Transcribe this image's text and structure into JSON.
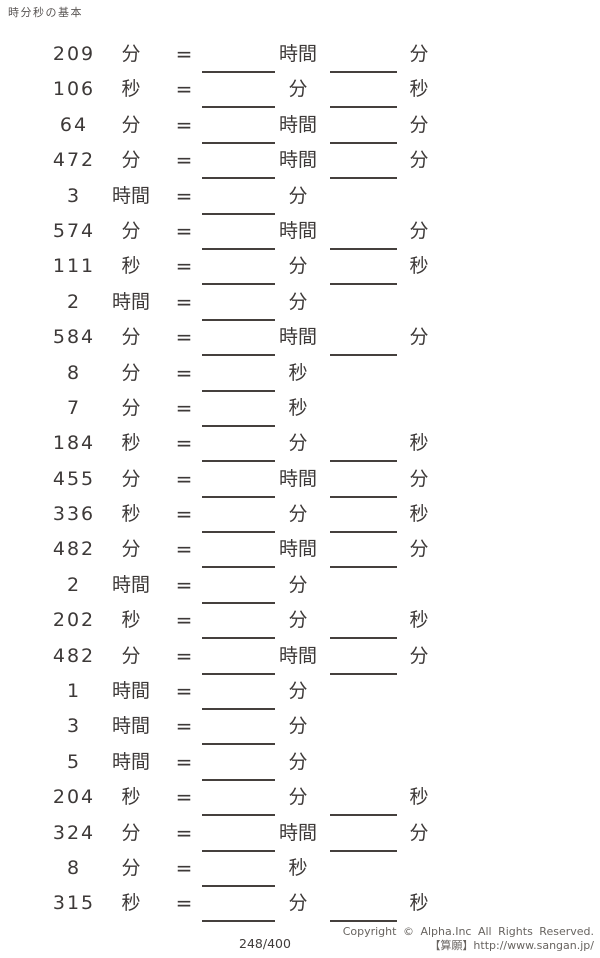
{
  "header": {
    "title": "時分秒の基本"
  },
  "problems": {
    "equals_symbol": "=",
    "rows": [
      {
        "value": "209",
        "from_unit": "分",
        "answer1_unit": "時間",
        "answer2_unit": "分"
      },
      {
        "value": "106",
        "from_unit": "秒",
        "answer1_unit": "分",
        "answer2_unit": "秒"
      },
      {
        "value": "64",
        "from_unit": "分",
        "answer1_unit": "時間",
        "answer2_unit": "分"
      },
      {
        "value": "472",
        "from_unit": "分",
        "answer1_unit": "時間",
        "answer2_unit": "分"
      },
      {
        "value": "3",
        "from_unit": "時間",
        "answer1_unit": "分",
        "answer2_unit": null
      },
      {
        "value": "574",
        "from_unit": "分",
        "answer1_unit": "時間",
        "answer2_unit": "分"
      },
      {
        "value": "111",
        "from_unit": "秒",
        "answer1_unit": "分",
        "answer2_unit": "秒"
      },
      {
        "value": "2",
        "from_unit": "時間",
        "answer1_unit": "分",
        "answer2_unit": null
      },
      {
        "value": "584",
        "from_unit": "分",
        "answer1_unit": "時間",
        "answer2_unit": "分"
      },
      {
        "value": "8",
        "from_unit": "分",
        "answer1_unit": "秒",
        "answer2_unit": null
      },
      {
        "value": "7",
        "from_unit": "分",
        "answer1_unit": "秒",
        "answer2_unit": null
      },
      {
        "value": "184",
        "from_unit": "秒",
        "answer1_unit": "分",
        "answer2_unit": "秒"
      },
      {
        "value": "455",
        "from_unit": "分",
        "answer1_unit": "時間",
        "answer2_unit": "分"
      },
      {
        "value": "336",
        "from_unit": "秒",
        "answer1_unit": "分",
        "answer2_unit": "秒"
      },
      {
        "value": "482",
        "from_unit": "分",
        "answer1_unit": "時間",
        "answer2_unit": "分"
      },
      {
        "value": "2",
        "from_unit": "時間",
        "answer1_unit": "分",
        "answer2_unit": null
      },
      {
        "value": "202",
        "from_unit": "秒",
        "answer1_unit": "分",
        "answer2_unit": "秒"
      },
      {
        "value": "482",
        "from_unit": "分",
        "answer1_unit": "時間",
        "answer2_unit": "分"
      },
      {
        "value": "1",
        "from_unit": "時間",
        "answer1_unit": "分",
        "answer2_unit": null
      },
      {
        "value": "3",
        "from_unit": "時間",
        "answer1_unit": "分",
        "answer2_unit": null
      },
      {
        "value": "5",
        "from_unit": "時間",
        "answer1_unit": "分",
        "answer2_unit": null
      },
      {
        "value": "204",
        "from_unit": "秒",
        "answer1_unit": "分",
        "answer2_unit": "秒"
      },
      {
        "value": "324",
        "from_unit": "分",
        "answer1_unit": "時間",
        "answer2_unit": "分"
      },
      {
        "value": "8",
        "from_unit": "分",
        "answer1_unit": "秒",
        "answer2_unit": null
      },
      {
        "value": "315",
        "from_unit": "秒",
        "answer1_unit": "分",
        "answer2_unit": "秒"
      }
    ]
  },
  "footer": {
    "page_number": "248/400",
    "copyright": "Copyright © Alpha.Inc All Rights Reserved.",
    "source": "【算願】http://www.sangan.jp/"
  }
}
